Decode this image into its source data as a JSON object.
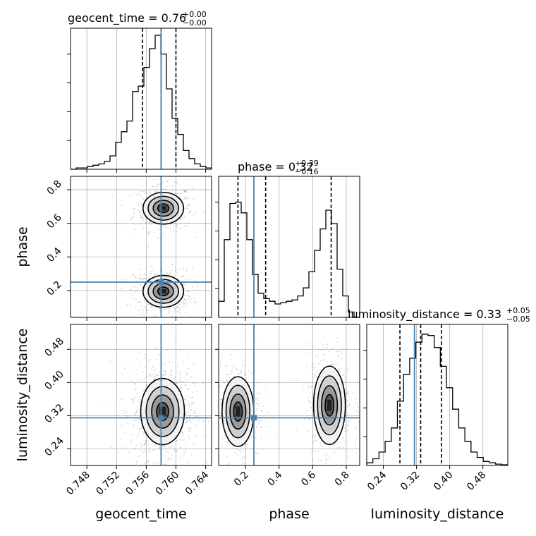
{
  "titles": {
    "geocent_time": {
      "base": "geocent_time = 0.76",
      "sup": "+0.00",
      "sub": "−0.00"
    },
    "phase": {
      "base": "phase = 0.32",
      "sup": "+0.39",
      "sub": "−0.16"
    },
    "luminosity_distance": {
      "base": "luminosity_distance = 0.33",
      "sup": "+0.05",
      "sub": "−0.05"
    }
  },
  "axis_labels": {
    "x": [
      "geocent_time",
      "phase",
      "luminosity_distance"
    ],
    "y": [
      "phase",
      "luminosity_distance"
    ]
  },
  "chart_data": {
    "type": "corner",
    "parameters": [
      "geocent_time",
      "phase",
      "luminosity_distance"
    ],
    "ranges": {
      "geocent_time": [
        0.7458,
        0.7648
      ],
      "phase": [
        0.04,
        0.88
      ],
      "luminosity_distance": [
        0.2,
        0.54
      ]
    },
    "ticks": {
      "geocent_time": [
        0.748,
        0.752,
        0.756,
        0.76,
        0.764
      ],
      "phase": [
        0.2,
        0.4,
        0.6,
        0.8
      ],
      "luminosity_distance": [
        0.24,
        0.32,
        0.4,
        0.48
      ]
    },
    "tick_labels": {
      "geocent_time": [
        "0.748",
        "0.752",
        "0.756",
        "0.760",
        "0.764"
      ],
      "phase": [
        "0.2",
        "0.4",
        "0.6",
        "0.8"
      ],
      "luminosity_distance": [
        "0.24",
        "0.32",
        "0.40",
        "0.48"
      ]
    },
    "truths": {
      "geocent_time": 0.758,
      "phase": 0.25,
      "luminosity_distance": 0.315
    },
    "quantiles": {
      "geocent_time": [
        0.7555,
        0.758,
        0.76
      ],
      "phase": [
        0.155,
        0.32,
        0.71
      ],
      "luminosity_distance": [
        0.28,
        0.33,
        0.38
      ]
    },
    "histograms": {
      "geocent_time": {
        "range": [
          0.7458,
          0.7648
        ],
        "counts": [
          0,
          0.01,
          0.01,
          0.02,
          0.03,
          0.04,
          0.06,
          0.1,
          0.2,
          0.28,
          0.36,
          0.58,
          0.62,
          0.76,
          0.9,
          1.0,
          0.86,
          0.6,
          0.38,
          0.26,
          0.14,
          0.08,
          0.04,
          0.02,
          0.01
        ]
      },
      "phase": {
        "range": [
          0.04,
          0.88
        ],
        "counts": [
          0.12,
          0.58,
          0.85,
          0.86,
          0.78,
          0.58,
          0.32,
          0.18,
          0.14,
          0.12,
          0.1,
          0.11,
          0.12,
          0.13,
          0.16,
          0.22,
          0.34,
          0.5,
          0.66,
          0.8,
          0.7,
          0.36,
          0.16,
          0.04,
          0.0
        ]
      },
      "luminosity_distance": {
        "range": [
          0.2,
          0.54
        ],
        "counts": [
          0.02,
          0.05,
          0.1,
          0.18,
          0.28,
          0.48,
          0.68,
          0.8,
          0.92,
          0.98,
          0.97,
          0.88,
          0.74,
          0.58,
          0.42,
          0.28,
          0.18,
          0.1,
          0.06,
          0.03,
          0.02,
          0.01,
          0.005
        ]
      }
    }
  }
}
